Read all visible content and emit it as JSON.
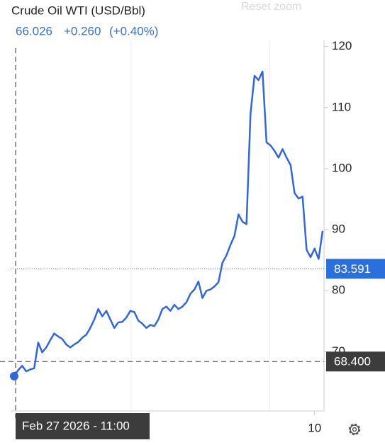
{
  "chart_data": {
    "type": "line",
    "title": "Crude Oil WTI (USD/Bbl)",
    "price": "66.026",
    "change": "+0.260",
    "change_pct": "(+0.40%)",
    "reset_zoom": "Reset zoom",
    "categories": [
      null,
      null,
      null,
      null,
      null,
      null,
      null,
      null,
      null,
      null,
      null,
      null,
      null,
      null,
      null,
      null,
      null,
      null,
      null,
      null,
      null,
      null,
      null,
      null,
      null,
      null,
      null,
      null,
      null,
      null,
      null,
      null,
      null,
      null,
      null,
      null,
      null,
      null,
      null,
      null,
      null,
      null,
      null,
      null,
      null,
      null,
      null,
      null,
      null,
      null,
      null,
      null,
      null,
      null,
      null,
      null,
      null,
      null,
      null,
      null,
      null,
      null,
      null,
      null,
      null,
      null,
      null,
      null,
      null,
      null,
      null,
      null,
      null,
      null,
      null,
      "10",
      null,
      null
    ],
    "series": [
      {
        "color": "#3366d6",
        "values": [
          66.0,
          67.0,
          67.7,
          66.8,
          67.1,
          67.3,
          71.5,
          69.9,
          70.7,
          71.9,
          73.0,
          72.5,
          72.1,
          71.2,
          70.7,
          71.2,
          71.6,
          72.3,
          72.8,
          73.9,
          75.3,
          77.0,
          75.8,
          76.7,
          75.3,
          73.9,
          74.8,
          74.9,
          75.6,
          76.7,
          76.5,
          75.1,
          74.6,
          73.9,
          74.4,
          74.2,
          75.3,
          77.0,
          77.4,
          76.7,
          77.7,
          77.0,
          77.4,
          78.1,
          79.5,
          80.2,
          81.5,
          78.8,
          80.0,
          80.2,
          80.7,
          81.4,
          84.6,
          85.8,
          87.5,
          89.0,
          92.5,
          91.3,
          90.9,
          109.0,
          115.2,
          114.5,
          115.9,
          104.3,
          103.8,
          102.9,
          101.8,
          103.2,
          101.8,
          100.6,
          96.0,
          95.1,
          95.4,
          86.7,
          85.5,
          86.9,
          85.2,
          89.8
        ]
      }
    ],
    "ylim": [
      60.3,
      121
    ],
    "yticks": [
      70,
      80,
      90,
      100,
      110,
      120
    ],
    "current_price": {
      "value": 83.591,
      "label": "83.591"
    },
    "crosshair": {
      "value": 68.4,
      "label": "68.400",
      "x_label": "Feb 27 2026 - 11:00"
    }
  }
}
